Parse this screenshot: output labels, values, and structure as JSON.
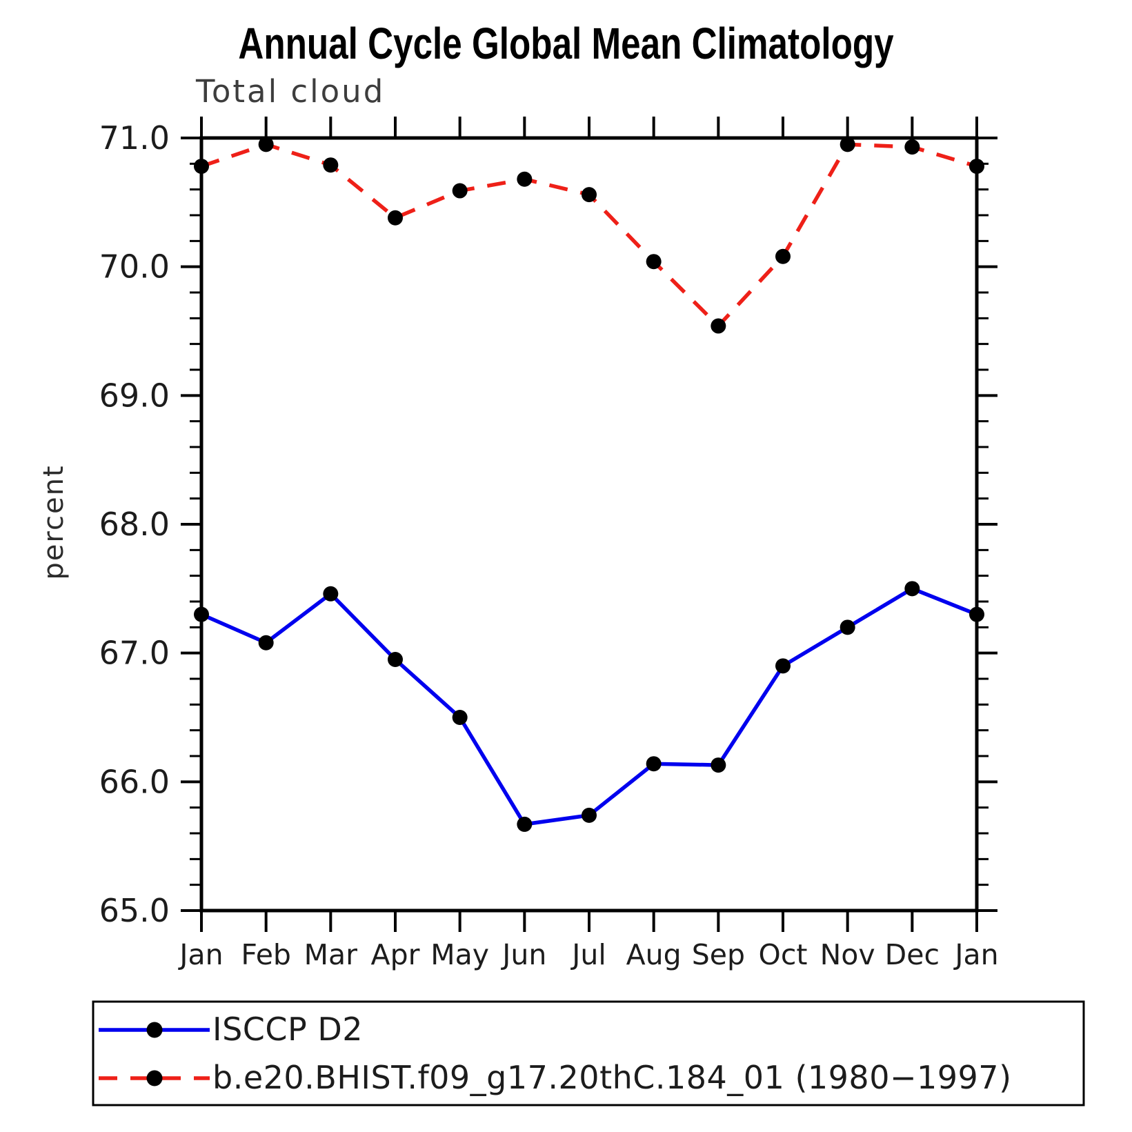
{
  "title": "Annual Cycle Global Mean Climatology",
  "subtitle": "Total cloud",
  "ylabel": "percent",
  "chart_data": {
    "type": "line",
    "categories": [
      "Jan",
      "Feb",
      "Mar",
      "Apr",
      "May",
      "Jun",
      "Jul",
      "Aug",
      "Sep",
      "Oct",
      "Nov",
      "Dec",
      "Jan"
    ],
    "ylim": [
      65.0,
      71.0
    ],
    "ytick_labels": [
      "65.0",
      "66.0",
      "67.0",
      "68.0",
      "69.0",
      "70.0",
      "71.0"
    ],
    "ytick_values": [
      65.0,
      66.0,
      67.0,
      68.0,
      69.0,
      70.0,
      71.0
    ],
    "minor_tick_step": 0.2,
    "grid": false,
    "legend_position": "bottom box",
    "axis_color": "#000000",
    "marker_color": "#000000",
    "series": [
      {
        "name": "ISCCP D2",
        "color": "#0000ee",
        "line_style": "solid",
        "marker": "filled-circle",
        "values": [
          67.3,
          67.08,
          67.46,
          66.95,
          66.5,
          65.67,
          65.74,
          66.14,
          66.13,
          66.9,
          67.2,
          67.5,
          67.3
        ]
      },
      {
        "name": "b.e20.BHIST.f09_g17.20thC.184_01 (1980−1997)",
        "color": "#ee2018",
        "line_style": "dashed",
        "marker": "filled-circle",
        "values": [
          70.78,
          70.95,
          70.79,
          70.38,
          70.59,
          70.68,
          70.56,
          70.04,
          69.54,
          70.08,
          70.95,
          70.93,
          70.78
        ]
      }
    ]
  }
}
